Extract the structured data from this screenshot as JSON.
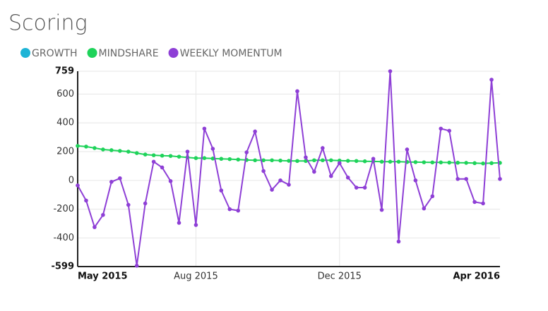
{
  "chart_data": {
    "type": "line",
    "title": "Scoring",
    "categories": [
      "May 2015",
      null,
      null,
      null,
      null,
      null,
      null,
      null,
      null,
      null,
      null,
      null,
      null,
      null,
      "Aug 2015",
      null,
      null,
      null,
      null,
      null,
      null,
      null,
      null,
      null,
      null,
      null,
      null,
      null,
      null,
      null,
      null,
      "Dec 2015",
      null,
      null,
      null,
      null,
      null,
      null,
      null,
      null,
      null,
      null,
      null,
      null,
      null,
      null,
      null,
      null,
      null,
      null,
      "Apr 2016"
    ],
    "series": [
      {
        "name": "GROWTH",
        "color": "#1eb4d6",
        "values": [
          null,
          null,
          null,
          null,
          null,
          null,
          null,
          null,
          null,
          null,
          null,
          null,
          null,
          null,
          null,
          null,
          null,
          null,
          null,
          null,
          null,
          null,
          null,
          null,
          null,
          null,
          null,
          null,
          null,
          null,
          null,
          null,
          null,
          null,
          null,
          null,
          null,
          null,
          null,
          null,
          null,
          null,
          null,
          null,
          null,
          null,
          null,
          null,
          null,
          null,
          null
        ]
      },
      {
        "name": "MINDSHARE",
        "color": "#1ed35a",
        "values": [
          240,
          235,
          225,
          215,
          210,
          205,
          200,
          190,
          180,
          175,
          172,
          170,
          165,
          160,
          155,
          155,
          152,
          150,
          148,
          145,
          142,
          140,
          140,
          140,
          138,
          136,
          135,
          135,
          140,
          140,
          140,
          138,
          136,
          135,
          133,
          132,
          130,
          130,
          130,
          128,
          127,
          126,
          125,
          125,
          124,
          123,
          122,
          120,
          118,
          120,
          122
        ]
      },
      {
        "name": "WEEKLY MOMENTUM",
        "color": "#8e3fd6",
        "values": [
          -35,
          -140,
          -325,
          -240,
          -10,
          15,
          -170,
          -593,
          -160,
          130,
          90,
          -5,
          -295,
          200,
          -310,
          360,
          220,
          -70,
          -200,
          -210,
          195,
          340,
          65,
          -65,
          0,
          -30,
          620,
          160,
          60,
          225,
          30,
          120,
          20,
          -50,
          -50,
          150,
          -205,
          759,
          -425,
          215,
          0,
          -195,
          -110,
          360,
          345,
          10,
          10,
          -150,
          -160,
          700,
          10
        ]
      }
    ],
    "ylim": [
      -599,
      759
    ],
    "yticks": [
      -599,
      -400,
      -200,
      0,
      200,
      400,
      600,
      759
    ],
    "grid": true
  }
}
